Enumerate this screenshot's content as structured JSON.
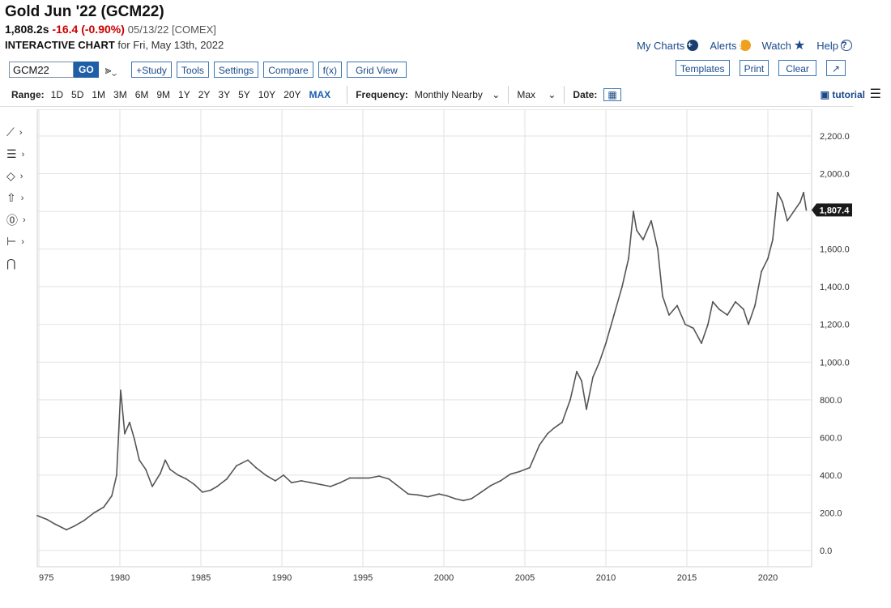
{
  "header": {
    "title": "Gold Jun '22 (GCM22)",
    "last": "1,808.2s",
    "change": "-16.4 (-0.90%)",
    "meta": "05/13/22 [COMEX]",
    "subtitle_bold": "INTERACTIVE CHART",
    "subtitle_rest": "for Fri, May 13th, 2022"
  },
  "links": {
    "my_charts": "My Charts",
    "alerts": "Alerts",
    "watch": "Watch",
    "help": "Help"
  },
  "toolbar": {
    "symbol": "GCM22",
    "go": "GO",
    "study": "+Study",
    "tools": "Tools",
    "settings": "Settings",
    "compare": "Compare",
    "fx": "f(x)",
    "grid_view": "Grid View",
    "templates": "Templates",
    "print": "Print",
    "clear": "Clear"
  },
  "range": {
    "label": "Range:",
    "options": [
      "1D",
      "5D",
      "1M",
      "3M",
      "6M",
      "9M",
      "1Y",
      "2Y",
      "3Y",
      "5Y",
      "10Y",
      "20Y",
      "MAX"
    ],
    "selected": "MAX",
    "frequency_label": "Frequency:",
    "frequency_value": "Monthly Nearby",
    "max_value": "Max",
    "date_label": "Date:",
    "tutorial": "tutorial"
  },
  "chart_data": {
    "type": "line",
    "title": "",
    "xlabel": "",
    "ylabel": "",
    "x_ticks": [
      "975",
      "1980",
      "1985",
      "1990",
      "1995",
      "2000",
      "2005",
      "2010",
      "2015",
      "2020"
    ],
    "y_ticks": [
      "0.0",
      "200.0",
      "400.0",
      "600.0",
      "800.0",
      "1,000.0",
      "1,200.0",
      "1,400.0",
      "1,600.0",
      "1,800.0",
      "2,000.0",
      "2,200.0"
    ],
    "ylim": [
      0,
      2200
    ],
    "xlim": [
      1974.9,
      2022.4
    ],
    "last_price_label": "1,807.4",
    "last_price": 1807.4,
    "grid": true,
    "series": [
      {
        "x": [
          1974.9,
          1975.5,
          1976.0,
          1976.7,
          1977.2,
          1977.8,
          1978.4,
          1979.0,
          1979.5,
          1979.8,
          1980.05,
          1980.3,
          1980.6,
          1980.9,
          1981.2,
          1981.6,
          1982.0,
          1982.5,
          1982.8,
          1983.1,
          1983.6,
          1984.1,
          1984.6,
          1985.1,
          1985.6,
          1986.0,
          1986.6,
          1987.2,
          1987.9,
          1988.4,
          1989.0,
          1989.6,
          1990.1,
          1990.6,
          1991.2,
          1991.8,
          1992.4,
          1993.0,
          1993.6,
          1994.2,
          1994.8,
          1995.4,
          1996.0,
          1996.6,
          1997.2,
          1997.8,
          1998.4,
          1999.0,
          1999.7,
          2000.2,
          2000.7,
          2001.2,
          2001.7,
          2002.3,
          2002.9,
          2003.5,
          2004.1,
          2004.7,
          2005.3,
          2005.9,
          2006.4,
          2006.8,
          2007.3,
          2007.8,
          2008.2,
          2008.5,
          2008.8,
          2009.2,
          2009.6,
          2010.0,
          2010.5,
          2011.0,
          2011.4,
          2011.7,
          2011.9,
          2012.3,
          2012.8,
          2013.2,
          2013.5,
          2013.9,
          2014.4,
          2014.9,
          2015.4,
          2015.9,
          2016.3,
          2016.6,
          2017.0,
          2017.5,
          2018.0,
          2018.5,
          2018.8,
          2019.2,
          2019.6,
          2020.0,
          2020.3,
          2020.6,
          2020.9,
          2021.2,
          2021.6,
          2022.0,
          2022.2,
          2022.37
        ],
        "values": [
          185,
          165,
          140,
          110,
          130,
          160,
          200,
          230,
          290,
          400,
          850,
          620,
          680,
          590,
          480,
          430,
          340,
          410,
          480,
          430,
          400,
          380,
          350,
          310,
          320,
          340,
          380,
          450,
          480,
          440,
          400,
          370,
          400,
          360,
          370,
          360,
          350,
          340,
          360,
          385,
          385,
          385,
          395,
          380,
          340,
          300,
          295,
          285,
          300,
          290,
          275,
          265,
          275,
          310,
          345,
          370,
          405,
          420,
          440,
          560,
          620,
          650,
          680,
          800,
          950,
          900,
          750,
          920,
          1000,
          1100,
          1250,
          1400,
          1550,
          1800,
          1700,
          1650,
          1750,
          1600,
          1350,
          1250,
          1300,
          1200,
          1180,
          1100,
          1200,
          1320,
          1280,
          1250,
          1320,
          1280,
          1200,
          1300,
          1480,
          1550,
          1650,
          1900,
          1850,
          1750,
          1800,
          1850,
          1900,
          1807.4
        ]
      }
    ]
  }
}
